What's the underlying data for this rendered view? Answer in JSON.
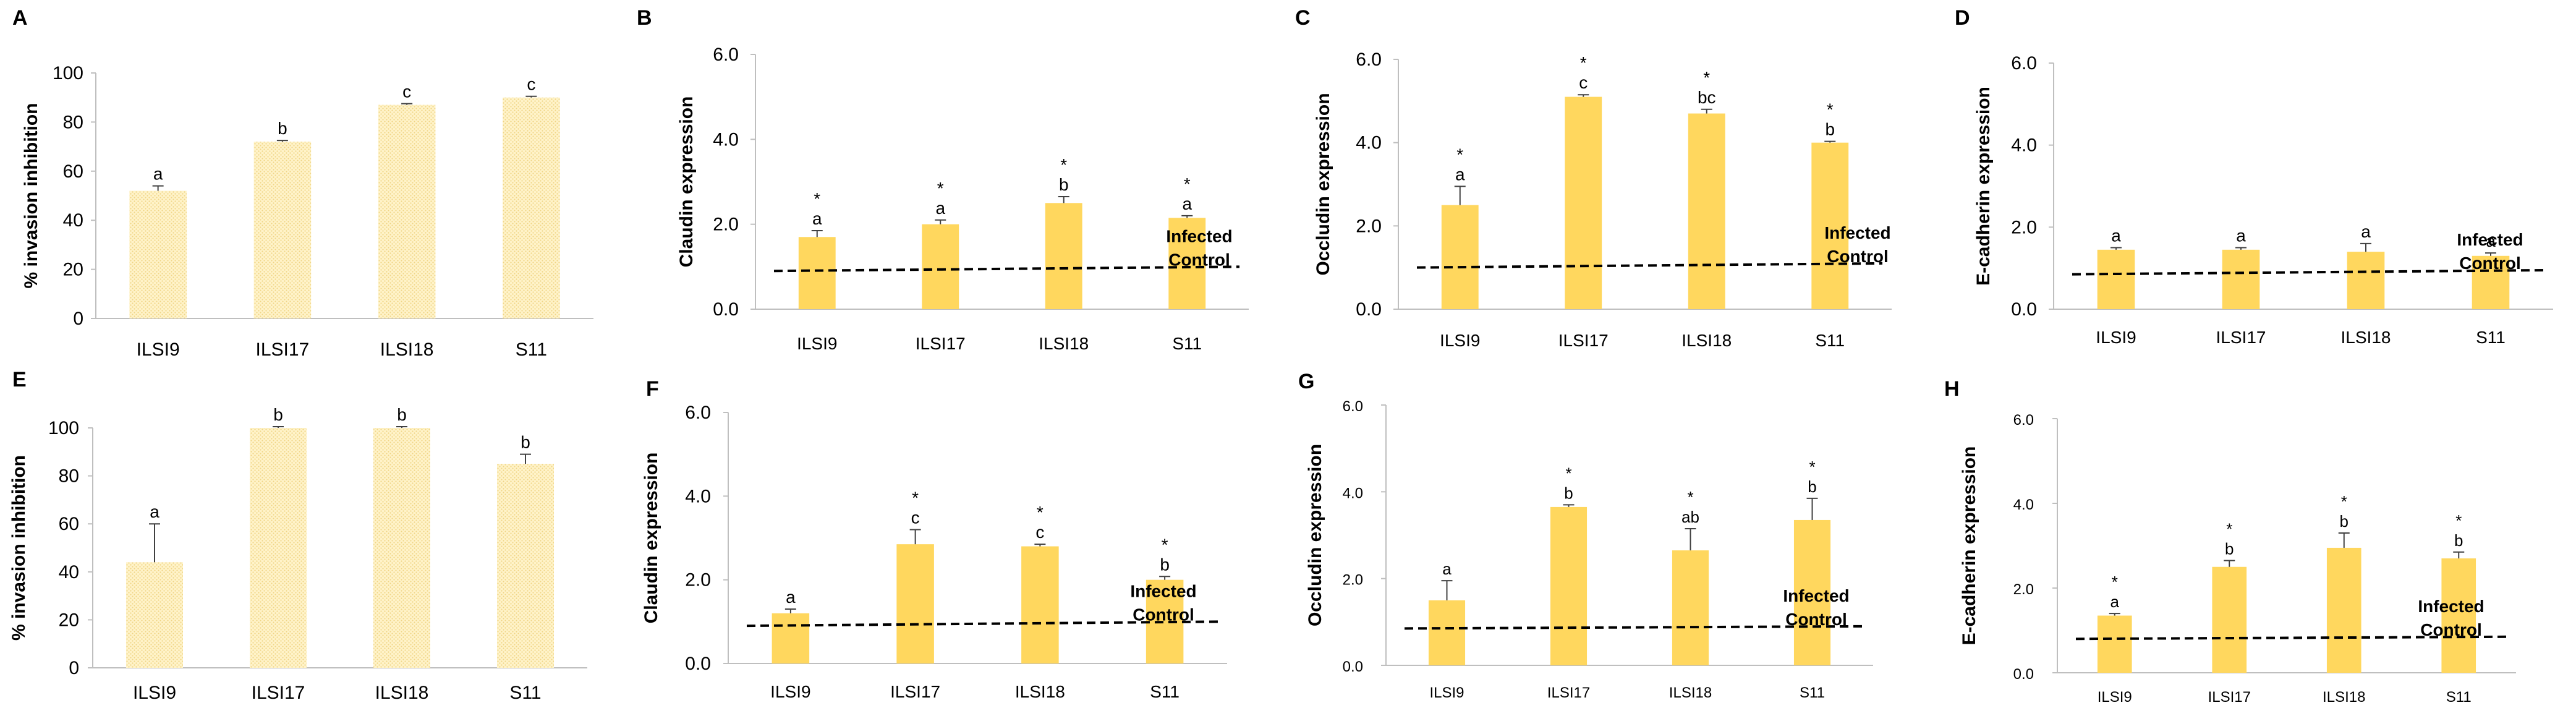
{
  "colors": {
    "bar": "#FFD75E",
    "bar_hatch": "#F5E2A0",
    "axis": "#BFBFBF",
    "text": "#000000",
    "error": "#404040"
  },
  "chart_data": [
    {
      "panel": "A",
      "type": "bar",
      "ylabel": "% invasion inhibition",
      "categories": [
        "ILSI9",
        "ILSI17",
        "ILSI18",
        "S11"
      ],
      "values": [
        52,
        72,
        87,
        90
      ],
      "errors": [
        2,
        0.5,
        0.5,
        0.5
      ],
      "letters": [
        "a",
        "b",
        "c",
        "c"
      ],
      "stars": [
        "",
        "",
        "",
        ""
      ],
      "ylim": [
        0,
        100
      ],
      "yticks": [
        "0",
        "20",
        "40",
        "60",
        "80",
        "100"
      ],
      "style": "hatched"
    },
    {
      "panel": "B",
      "type": "bar",
      "ylabel": "Claudin expression",
      "categories": [
        "ILSI9",
        "ILSI17",
        "ILSI18",
        "S11"
      ],
      "values": [
        1.7,
        2.0,
        2.5,
        2.15
      ],
      "errors": [
        0.15,
        0.1,
        0.15,
        0.05
      ],
      "letters": [
        "a",
        "a",
        "b",
        "a"
      ],
      "stars": [
        "*",
        "*",
        "*",
        "*"
      ],
      "ylim": [
        0,
        6
      ],
      "yticks": [
        "0.0",
        "2.0",
        "4.0",
        "6.0"
      ],
      "reference_line": {
        "value": 0.9,
        "value_end": 1.0,
        "label_line1": "Infected",
        "label_line2": "Control"
      }
    },
    {
      "panel": "C",
      "type": "bar",
      "ylabel": "Occludin expression",
      "categories": [
        "ILSI9",
        "ILSI17",
        "ILSI18",
        "S11"
      ],
      "values": [
        2.5,
        5.1,
        4.7,
        4.0
      ],
      "errors": [
        0.45,
        0.05,
        0.1,
        0.03
      ],
      "letters": [
        "a",
        "c",
        "bc",
        "b"
      ],
      "stars": [
        "*",
        "*",
        "*",
        "*"
      ],
      "ylim": [
        0,
        6
      ],
      "yticks": [
        "0.0",
        "2.0",
        "4.0",
        "6.0"
      ],
      "reference_line": {
        "value": 1.0,
        "value_end": 1.1,
        "label_line1": "Infected",
        "label_line2": "Control"
      }
    },
    {
      "panel": "D",
      "type": "bar",
      "ylabel": "E-cadherin expression",
      "categories": [
        "ILSI9",
        "ILSI17",
        "ILSI18",
        "S11"
      ],
      "values": [
        1.45,
        1.45,
        1.4,
        1.3
      ],
      "errors": [
        0.05,
        0.05,
        0.2,
        0.07
      ],
      "letters": [
        "a",
        "a",
        "a",
        "a"
      ],
      "stars": [
        "",
        "",
        "",
        ""
      ],
      "ylim": [
        0,
        6
      ],
      "yticks": [
        "0.0",
        "2.0",
        "4.0",
        "6.0"
      ],
      "reference_line": {
        "value": 0.85,
        "value_end": 0.95,
        "label_line1": "Infected",
        "label_line2": "Control"
      }
    },
    {
      "panel": "E",
      "type": "bar",
      "ylabel": "% invasion inhibition",
      "categories": [
        "ILSI9",
        "ILSI17",
        "ILSI18",
        "S11"
      ],
      "values": [
        44,
        100,
        100,
        85
      ],
      "errors": [
        16,
        0.5,
        0.5,
        4
      ],
      "letters": [
        "a",
        "b",
        "b",
        "b"
      ],
      "stars": [
        "",
        "",
        "",
        ""
      ],
      "ylim": [
        0,
        100
      ],
      "yticks": [
        "0",
        "20",
        "40",
        "60",
        "80",
        "100"
      ],
      "style": "hatched"
    },
    {
      "panel": "F",
      "type": "bar",
      "ylabel": "Claudin expression",
      "categories": [
        "ILSI9",
        "ILSI17",
        "ILSI18",
        "S11"
      ],
      "values": [
        1.2,
        2.85,
        2.8,
        2.0
      ],
      "errors": [
        0.1,
        0.35,
        0.05,
        0.08
      ],
      "letters": [
        "a",
        "c",
        "c",
        "b"
      ],
      "stars": [
        "",
        "*",
        "*",
        "*"
      ],
      "ylim": [
        0,
        6
      ],
      "yticks": [
        "0.0",
        "2.0",
        "4.0",
        "6.0"
      ],
      "reference_line": {
        "value": 0.9,
        "value_end": 1.0,
        "label_line1": "Infected",
        "label_line2": "Control"
      }
    },
    {
      "panel": "G",
      "type": "bar",
      "ylabel": "Occludin expression",
      "categories": [
        "ILSI9",
        "ILSI17",
        "ILSI18",
        "S11"
      ],
      "values": [
        1.5,
        3.65,
        2.65,
        3.35
      ],
      "errors": [
        0.45,
        0.05,
        0.5,
        0.5
      ],
      "letters": [
        "a",
        "b",
        "ab",
        "b"
      ],
      "stars": [
        "",
        "*",
        "*",
        "*"
      ],
      "ylim": [
        0,
        6
      ],
      "yticks": [
        "0.0",
        "2.0",
        "4.0",
        "6.0"
      ],
      "reference_line": {
        "value": 0.85,
        "value_end": 0.9,
        "label_line1": "Infected",
        "label_line2": "Control"
      }
    },
    {
      "panel": "H",
      "type": "bar",
      "ylabel": "E-cadherin expression",
      "categories": [
        "ILSI9",
        "ILSI17",
        "ILSI18",
        "S11"
      ],
      "values": [
        1.35,
        2.5,
        2.95,
        2.7
      ],
      "errors": [
        0.05,
        0.15,
        0.35,
        0.15
      ],
      "letters": [
        "a",
        "b",
        "b",
        "b"
      ],
      "stars": [
        "*",
        "*",
        "*",
        "*"
      ],
      "ylim": [
        0,
        6
      ],
      "yticks": [
        "2.0",
        "4.0",
        "6.0"
      ],
      "yticks_zero_label": "0.0",
      "reference_line": {
        "value": 0.8,
        "value_end": 0.85,
        "label_line1": "Infected",
        "label_line2": "Control"
      }
    }
  ]
}
